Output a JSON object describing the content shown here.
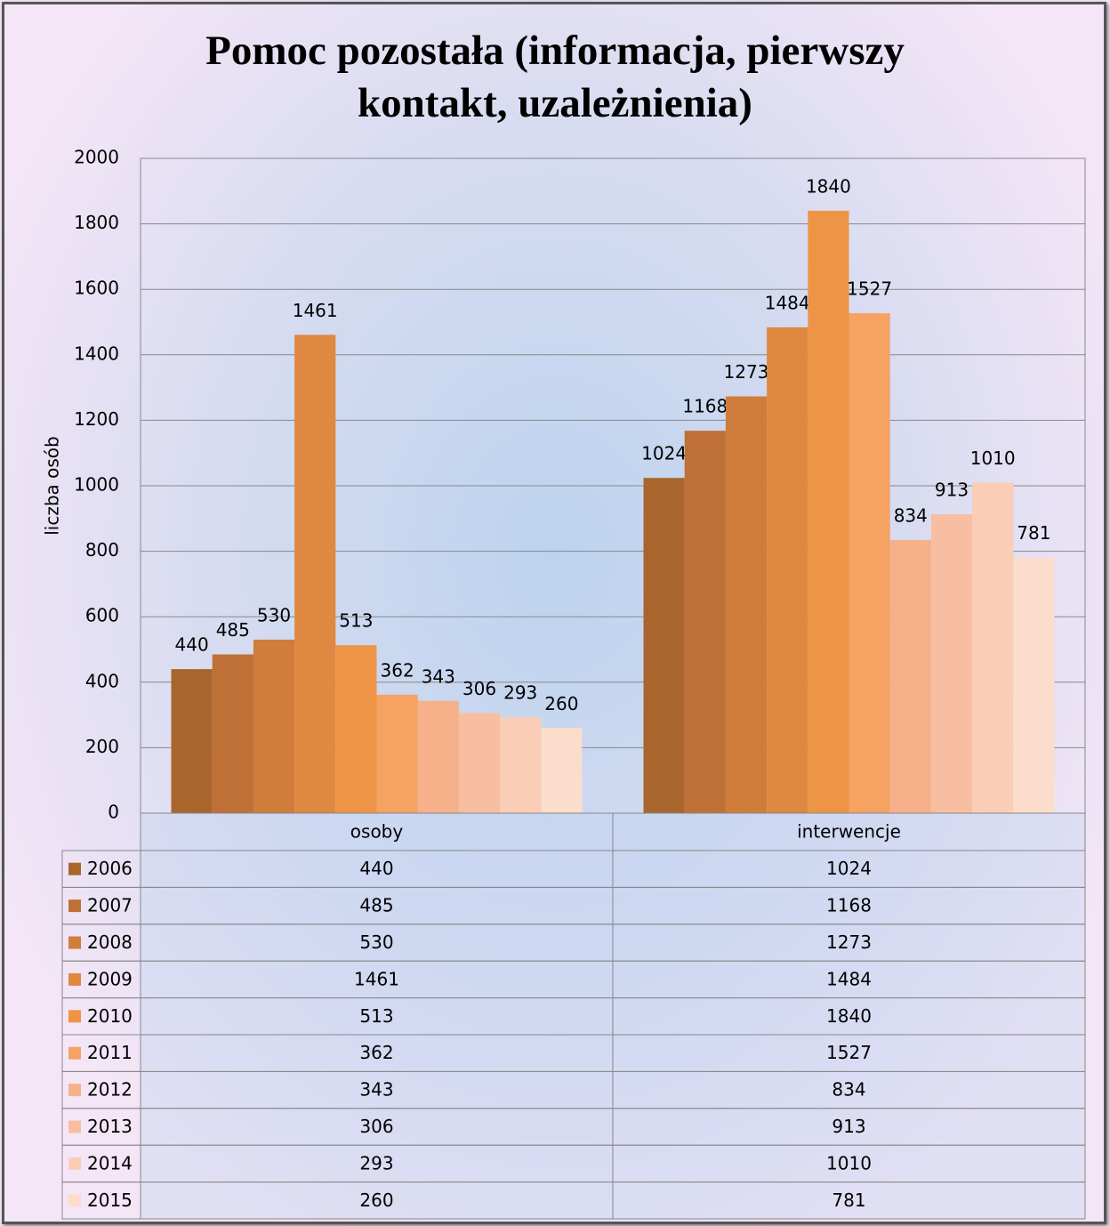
{
  "chart_data": {
    "type": "bar",
    "title": "Pomoc pozostała (informacja, pierwszy kontakt, uzależnienia)",
    "ylabel": "liczba osób",
    "categories": [
      "osoby",
      "interwencje"
    ],
    "series": [
      {
        "name": "2006",
        "color": "#a8652d",
        "values": [
          440,
          1024
        ]
      },
      {
        "name": "2007",
        "color": "#bf7036",
        "values": [
          485,
          1168
        ]
      },
      {
        "name": "2008",
        "color": "#d07c3b",
        "values": [
          530,
          1273
        ]
      },
      {
        "name": "2009",
        "color": "#de8841",
        "values": [
          1461,
          1484
        ]
      },
      {
        "name": "2010",
        "color": "#ee9446",
        "values": [
          513,
          1840
        ]
      },
      {
        "name": "2011",
        "color": "#f5a263",
        "values": [
          362,
          1527
        ]
      },
      {
        "name": "2012",
        "color": "#f6b08a",
        "values": [
          343,
          834
        ]
      },
      {
        "name": "2013",
        "color": "#f8bea1",
        "values": [
          306,
          913
        ]
      },
      {
        "name": "2014",
        "color": "#fbcdb6",
        "values": [
          293,
          1010
        ]
      },
      {
        "name": "2015",
        "color": "#fcdccb",
        "values": [
          260,
          781
        ]
      }
    ],
    "ylim": [
      0,
      2000
    ],
    "yticks": [
      0,
      200,
      400,
      600,
      800,
      1000,
      1200,
      1400,
      1600,
      1800,
      2000
    ],
    "grid": true,
    "data_table": true
  }
}
